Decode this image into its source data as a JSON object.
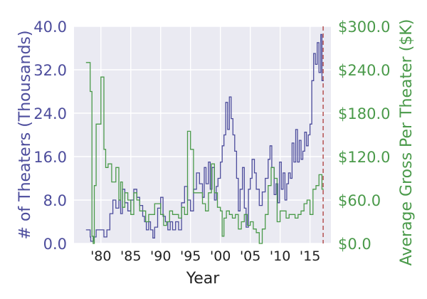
{
  "chart_data": {
    "type": "line",
    "xlabel": "Year",
    "ylabel_left": "# of Theaters (Thousands)",
    "ylabel_right": "Average Gross Per Theater ($K)",
    "xlim": [
      1975.5,
      2018.5
    ],
    "ylim_left": [
      0,
      40
    ],
    "ylim_right": [
      0,
      300
    ],
    "x_ticks": [
      {
        "value": 1980,
        "label": "'80"
      },
      {
        "value": 1985,
        "label": "'85"
      },
      {
        "value": 1990,
        "label": "'90"
      },
      {
        "value": 1995,
        "label": "'95"
      },
      {
        "value": 2000,
        "label": "'00"
      },
      {
        "value": 2005,
        "label": "'05"
      },
      {
        "value": 2010,
        "label": "'10"
      },
      {
        "value": 2015,
        "label": "'15"
      }
    ],
    "y_ticks_left": [
      {
        "value": 0,
        "label": "0.0"
      },
      {
        "value": 8,
        "label": "8.0"
      },
      {
        "value": 16,
        "label": "16.0"
      },
      {
        "value": 24,
        "label": "24.0"
      },
      {
        "value": 32,
        "label": "32.0"
      },
      {
        "value": 40,
        "label": "40.0"
      }
    ],
    "y_ticks_right": [
      {
        "value": 0,
        "label": "$0.0"
      },
      {
        "value": 60,
        "label": "$60.0"
      },
      {
        "value": 120,
        "label": "$120.0"
      },
      {
        "value": 180,
        "label": "$180.0"
      },
      {
        "value": 240,
        "label": "$240.0"
      },
      {
        "value": 300,
        "label": "$300.0"
      }
    ],
    "reference_line": {
      "x": 2017.2,
      "style": "dashed"
    },
    "grid": true,
    "series": [
      {
        "name": "# of Theaters (Thousands)",
        "axis": "left",
        "color": "#4c4c9c",
        "x": [
          1977.5,
          1978.2,
          1978.3,
          1978.8,
          1979.2,
          1980.5,
          1981.0,
          1981.5,
          1982.0,
          1982.5,
          1983.0,
          1983.3,
          1983.6,
          1984.0,
          1984.5,
          1985.0,
          1985.5,
          1986.0,
          1986.5,
          1987.0,
          1987.3,
          1987.6,
          1988.0,
          1988.3,
          1988.7,
          1989.0,
          1989.5,
          1990.0,
          1990.4,
          1990.8,
          1991.2,
          1991.6,
          1992.0,
          1992.5,
          1993.0,
          1993.5,
          1994.0,
          1994.5,
          1995.0,
          1995.5,
          1996.0,
          1996.5,
          1997.0,
          1997.3,
          1997.6,
          1998.0,
          1998.3,
          1998.6,
          1999.0,
          1999.3,
          1999.6,
          2000.0,
          2000.3,
          2000.6,
          2000.9,
          2001.2,
          2001.5,
          2001.8,
          2002.1,
          2002.4,
          2002.7,
          2003.0,
          2003.3,
          2003.7,
          2004.0,
          2004.3,
          2004.7,
          2005.0,
          2005.3,
          2005.7,
          2006.0,
          2006.5,
          2007.0,
          2007.5,
          2008.0,
          2008.3,
          2008.6,
          2009.0,
          2009.3,
          2009.6,
          2009.9,
          2010.2,
          2010.5,
          2010.8,
          2011.1,
          2011.4,
          2011.7,
          2012.0,
          2012.3,
          2012.6,
          2012.9,
          2013.2,
          2013.5,
          2013.8,
          2014.1,
          2014.4,
          2014.7,
          2015.0,
          2015.3,
          2015.6,
          2015.9,
          2016.2,
          2016.5,
          2016.8,
          2017.0
        ],
        "values": [
          2.5,
          1.2,
          0.4,
          1.2,
          2.5,
          1.2,
          2.5,
          5.5,
          8.0,
          6.5,
          8.0,
          5.5,
          10.0,
          7.5,
          6.0,
          8.0,
          10.0,
          8.5,
          7.0,
          5.0,
          4.0,
          2.5,
          4.0,
          2.5,
          1.0,
          3.0,
          6.5,
          8.5,
          5.0,
          4.0,
          2.5,
          4.0,
          2.5,
          4.0,
          2.5,
          7.5,
          10.5,
          8.0,
          6.0,
          10.0,
          13.0,
          11.0,
          8.5,
          14.0,
          11.0,
          15.0,
          10.0,
          14.0,
          8.0,
          10.5,
          12.0,
          15.0,
          18.0,
          20.0,
          26.0,
          21.0,
          27.0,
          23.0,
          20.0,
          17.0,
          12.0,
          6.0,
          10.0,
          14.0,
          6.5,
          3.0,
          10.0,
          12.0,
          15.5,
          13.0,
          10.0,
          7.0,
          9.5,
          12.0,
          15.5,
          18.0,
          14.0,
          9.0,
          11.0,
          7.5,
          15.0,
          10.0,
          13.0,
          8.0,
          11.0,
          13.0,
          12.0,
          18.5,
          15.0,
          21.0,
          15.0,
          19.0,
          15.5,
          17.0,
          20.5,
          18.0,
          20.0,
          22.0,
          30.0,
          35.0,
          33.0,
          37.0,
          31.5,
          38.5,
          30.0
        ]
      },
      {
        "name": "Average Gross Per Theater ($K)",
        "axis": "right",
        "color": "#4a9a4a",
        "x": [
          1977.5,
          1978.2,
          1978.5,
          1978.7,
          1978.9,
          1979.2,
          1980.0,
          1980.5,
          1980.8,
          1981.2,
          1981.8,
          1982.5,
          1983.0,
          1983.3,
          1983.6,
          1984.0,
          1984.5,
          1985.0,
          1985.5,
          1986.0,
          1986.5,
          1987.0,
          1987.5,
          1988.0,
          1988.5,
          1989.0,
          1989.5,
          1990.0,
          1990.5,
          1991.0,
          1991.5,
          1992.0,
          1992.5,
          1993.0,
          1993.5,
          1994.0,
          1994.5,
          1995.0,
          1995.5,
          1996.0,
          1996.5,
          1997.0,
          1997.5,
          1998.0,
          1998.5,
          1999.0,
          1999.5,
          2000.0,
          2000.3,
          2000.6,
          2001.0,
          2001.5,
          2002.0,
          2002.5,
          2003.0,
          2003.5,
          2004.0,
          2004.5,
          2005.0,
          2005.5,
          2006.0,
          2006.5,
          2007.0,
          2007.5,
          2008.0,
          2008.5,
          2009.0,
          2009.5,
          2010.0,
          2010.5,
          2011.0,
          2011.5,
          2012.0,
          2012.5,
          2013.0,
          2013.5,
          2014.0,
          2014.5,
          2015.0,
          2015.5,
          2016.0,
          2016.5,
          2017.0
        ],
        "values": [
          250,
          210,
          10,
          0,
          80,
          165,
          230,
          130,
          105,
          110,
          85,
          105,
          60,
          85,
          50,
          70,
          60,
          40,
          70,
          60,
          45,
          45,
          30,
          40,
          40,
          55,
          55,
          40,
          25,
          30,
          45,
          40,
          40,
          35,
          50,
          40,
          155,
          130,
          70,
          70,
          70,
          55,
          45,
          70,
          110,
          70,
          50,
          45,
          10,
          35,
          45,
          40,
          35,
          40,
          20,
          30,
          40,
          25,
          30,
          20,
          15,
          0,
          20,
          40,
          80,
          105,
          90,
          30,
          45,
          45,
          35,
          40,
          40,
          35,
          40,
          45,
          55,
          60,
          40,
          75,
          80,
          95,
          75
        ]
      }
    ]
  }
}
